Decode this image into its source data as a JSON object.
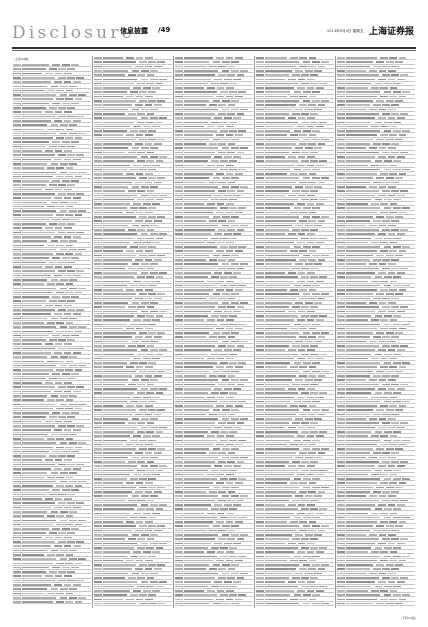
{
  "masthead": {
    "brand": "Disclosure",
    "section": "信息披露",
    "page": "/49",
    "date": "2013年5月3日 星期五",
    "paper": "上海证券报"
  },
  "content": {
    "columns": 5,
    "first_column_label": "(上接48版)"
  },
  "folio": "(下转50版)"
}
